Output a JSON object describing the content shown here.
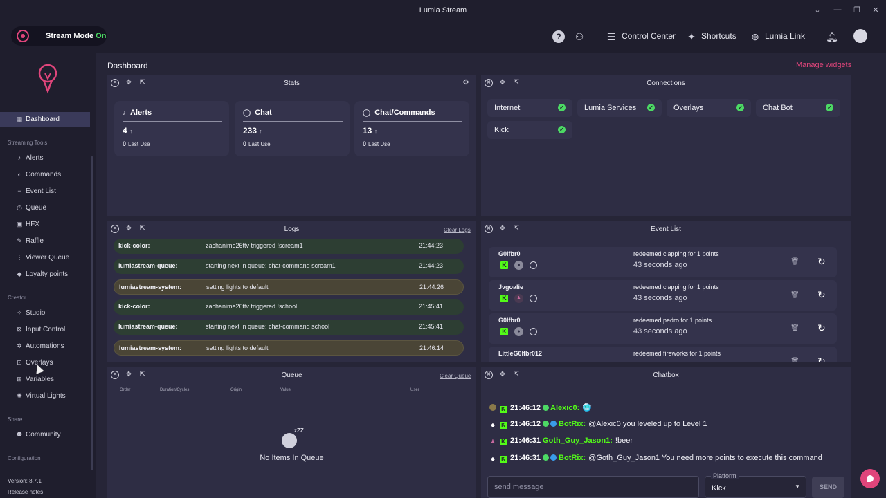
{
  "window": {
    "title": "Lumia Stream",
    "controls": [
      "⌄",
      "—",
      "❐",
      "✕"
    ]
  },
  "header": {
    "stream_mode_label": "Stream Mode",
    "stream_mode_state": "On",
    "control_center": "Control Center",
    "shortcuts": "Shortcuts",
    "lumia_link": "Lumia Link"
  },
  "sidebar": {
    "dashboard": "Dashboard",
    "streaming_tools_label": "Streaming Tools",
    "streaming_tools": [
      {
        "label": "Alerts",
        "icon": "bell-icon"
      },
      {
        "label": "Commands",
        "icon": "commands-icon"
      },
      {
        "label": "Event List",
        "icon": "list-icon"
      },
      {
        "label": "Queue",
        "icon": "queue-icon"
      },
      {
        "label": "HFX",
        "icon": "hfx-icon"
      },
      {
        "label": "Raffle",
        "icon": "raffle-icon"
      },
      {
        "label": "Viewer Queue",
        "icon": "viewer-queue-icon"
      },
      {
        "label": "Loyalty points",
        "icon": "loyalty-icon"
      }
    ],
    "creator_label": "Creator",
    "creator": [
      {
        "label": "Studio",
        "icon": "studio-icon"
      },
      {
        "label": "Input Control",
        "icon": "input-control-icon"
      },
      {
        "label": "Automations",
        "icon": "automations-icon"
      },
      {
        "label": "Overlays",
        "icon": "overlays-icon"
      },
      {
        "label": "Variables",
        "icon": "variables-icon"
      },
      {
        "label": "Virtual Lights",
        "icon": "virtual-lights-icon"
      }
    ],
    "share_label": "Share",
    "share": [
      {
        "label": "Community",
        "icon": "community-icon"
      }
    ],
    "configuration_label": "Configuration",
    "version": "Version: 8.7.1",
    "release_notes": "Release notes"
  },
  "main": {
    "title": "Dashboard",
    "manage_widgets": "Manage widgets"
  },
  "stats": {
    "title": "Stats",
    "cards": [
      {
        "name": "Alerts",
        "value": "4",
        "last": "0",
        "last_label": "Last Use"
      },
      {
        "name": "Chat",
        "value": "233",
        "last": "0",
        "last_label": "Last Use"
      },
      {
        "name": "Chat/Commands",
        "value": "13",
        "last": "0",
        "last_label": "Last Use"
      }
    ]
  },
  "connections": {
    "title": "Connections",
    "items": [
      "Internet",
      "Lumia Services",
      "Overlays",
      "Chat Bot",
      "Kick"
    ]
  },
  "logs": {
    "title": "Logs",
    "clear": "Clear Logs",
    "rows": [
      {
        "source": "kick-color:",
        "message": "zachanime26ttv triggered !scream1",
        "time": "21:44:23",
        "kind": "color"
      },
      {
        "source": "lumiastream-queue:",
        "message": "starting next in queue: chat-command scream1",
        "time": "21:44:23",
        "kind": "queue"
      },
      {
        "source": "lumiastream-system:",
        "message": "setting lights to default",
        "time": "21:44:26",
        "kind": "sys"
      },
      {
        "source": "kick-color:",
        "message": "zachanime26ttv triggered !school",
        "time": "21:45:41",
        "kind": "color"
      },
      {
        "source": "lumiastream-queue:",
        "message": "starting next in queue: chat-command school",
        "time": "21:45:41",
        "kind": "queue"
      },
      {
        "source": "lumiastream-system:",
        "message": "setting lights to default",
        "time": "21:46:14",
        "kind": "sys"
      }
    ]
  },
  "event_list": {
    "title": "Event List",
    "rows": [
      {
        "user": "G0lfbr0",
        "text": "redeemed clapping for 1 points",
        "ago": "43 seconds ago"
      },
      {
        "user": "Jvgoalie",
        "text": "redeemed clapping for 1 points",
        "ago": "43 seconds ago"
      },
      {
        "user": "G0lfbr0",
        "text": "redeemed pedro for 1 points",
        "ago": "43 seconds ago"
      },
      {
        "user": "LittleG0lfbr012",
        "text": "redeemed fireworks for 1 points",
        "ago": ""
      }
    ]
  },
  "queue": {
    "title": "Queue",
    "clear": "Clear Queue",
    "columns": [
      "Order",
      "Duration/Cycles",
      "Origin",
      "Value",
      "User"
    ],
    "empty": "No Items In Queue",
    "zzz": "zZZ"
  },
  "chatbox": {
    "title": "Chatbox",
    "messages": [
      {
        "time": "21:46:12",
        "user": "Alexic0:",
        "text": "🥶",
        "bot": false
      },
      {
        "time": "21:46:12",
        "user": "BotRix:",
        "text": "@Alexic0 you leveled up to Level 1",
        "bot": true
      },
      {
        "time": "21:46:31",
        "user": "Goth_Guy_Jason1:",
        "text": "!beer",
        "bot": false
      },
      {
        "time": "21:46:31",
        "user": "BotRix:",
        "text": "@Goth_Guy_Jason1 You need more points to execute this command",
        "bot": true
      }
    ],
    "placeholder": "send message",
    "platform_label": "Platform",
    "platform_value": "Kick",
    "send": "SEND"
  }
}
